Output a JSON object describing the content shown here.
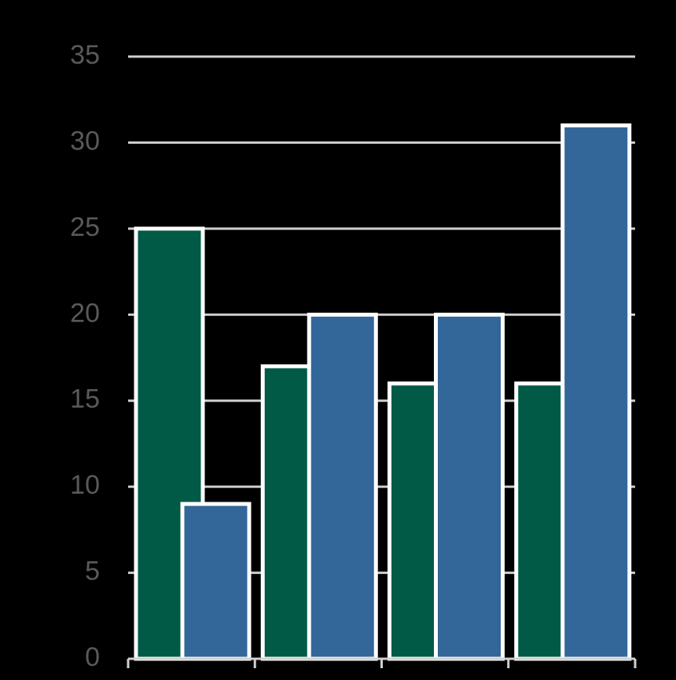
{
  "chart_data": {
    "type": "bar",
    "categories": [
      null,
      null,
      null,
      null
    ],
    "series": [
      {
        "color": "#005a46",
        "values": [
          25,
          17,
          16,
          16
        ]
      },
      {
        "color": "#336699",
        "values": [
          9,
          20,
          20,
          31
        ]
      }
    ],
    "ylim": [
      0,
      35
    ],
    "yticks": [
      0,
      5,
      10,
      15,
      20,
      25,
      30,
      35
    ],
    "grid": true
  }
}
